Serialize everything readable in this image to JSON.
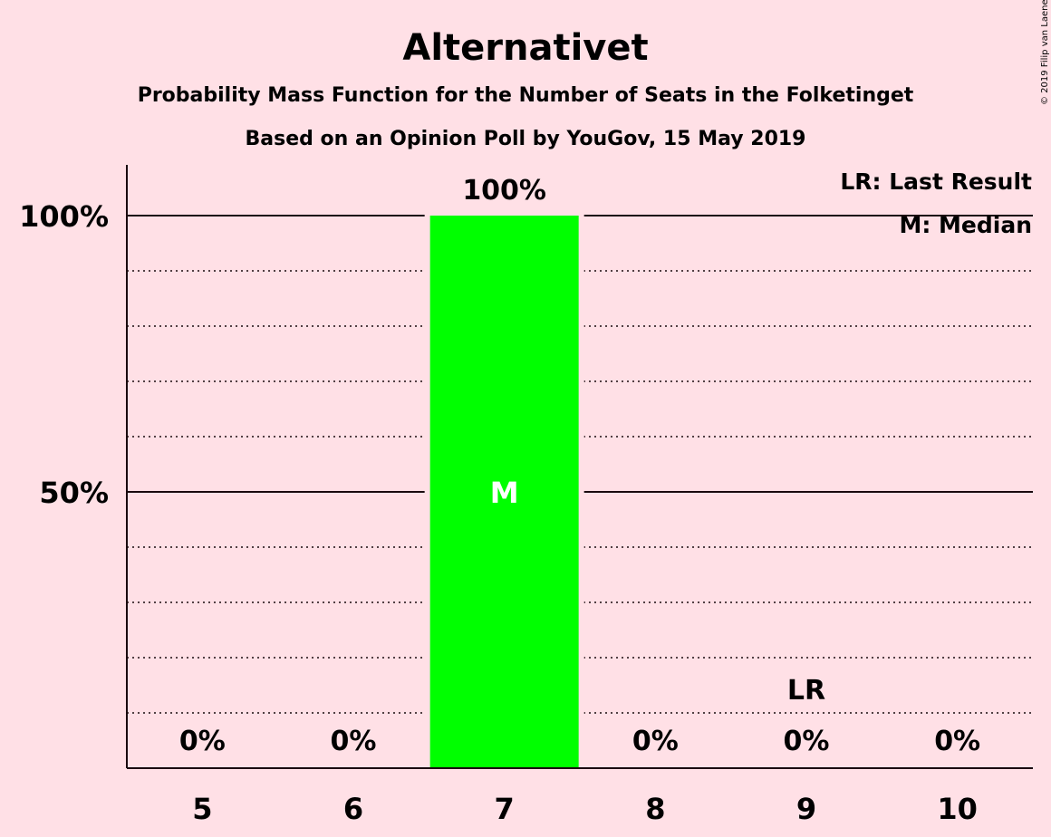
{
  "chart_data": {
    "type": "bar",
    "title": "Alternativet",
    "subtitle": "Probability Mass Function for the Number of Seats in the Folketinget",
    "subtitle2": "Based on an Opinion Poll by YouGov, 15 May 2019",
    "categories": [
      "5",
      "6",
      "7",
      "8",
      "9",
      "10"
    ],
    "values": [
      0,
      0,
      100,
      0,
      0,
      0
    ],
    "value_labels": [
      "0%",
      "0%",
      "100%",
      "0%",
      "0%",
      "0%"
    ],
    "ylim": [
      0,
      109
    ],
    "y_ticks": [
      {
        "value": 50,
        "label": "50%"
      },
      {
        "value": 100,
        "label": "100%"
      }
    ],
    "minor_gridlines": [
      10,
      20,
      30,
      40,
      60,
      70,
      80,
      90
    ],
    "bar_color": "#00ff00",
    "median": {
      "category": "7",
      "label": "M"
    },
    "last_result": {
      "category": "9",
      "label": "LR"
    },
    "legend": [
      "LR: Last Result",
      "M: Median"
    ],
    "legend_position": "top-right",
    "copyright": "© 2019 Filip van Laenen"
  }
}
